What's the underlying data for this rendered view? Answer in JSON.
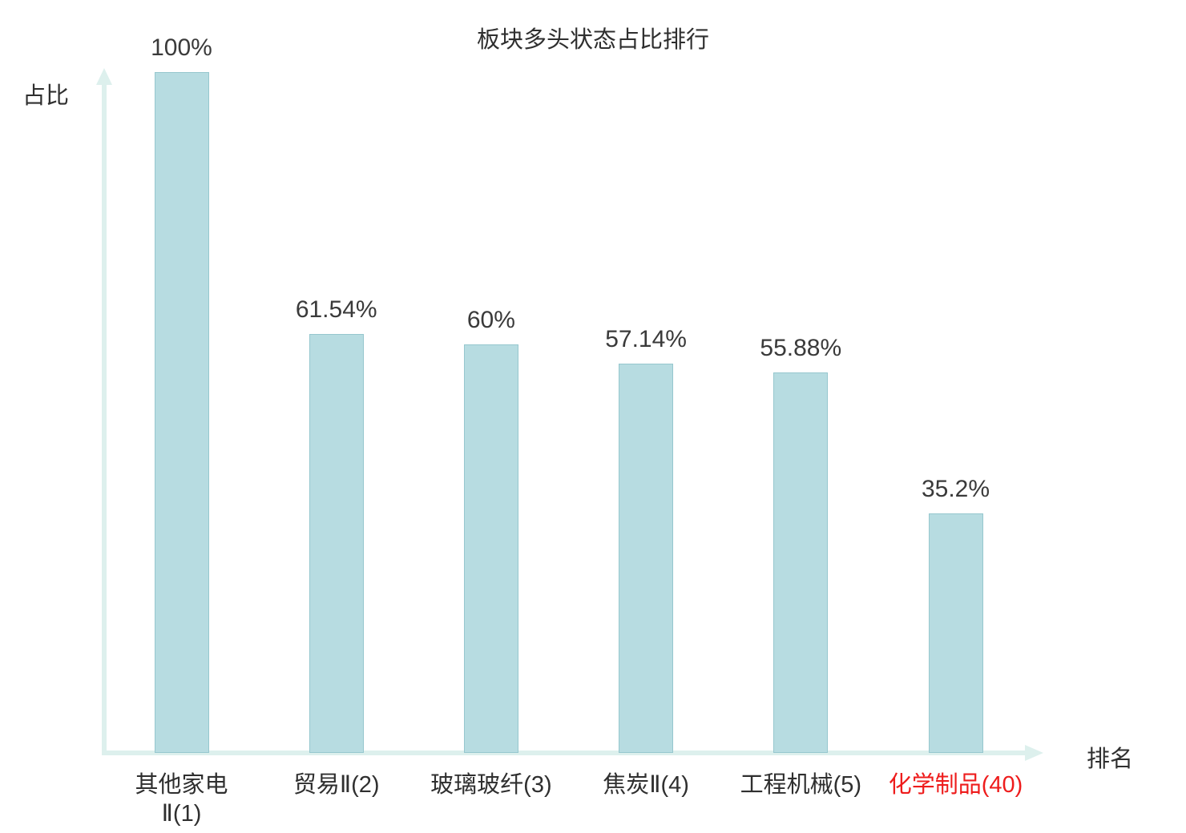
{
  "chart_data": {
    "type": "bar",
    "title": "板块多头状态占比排行",
    "ylabel": "占比",
    "xlabel": "排名",
    "categories": [
      "其他家电\nⅡ(1)",
      "贸易Ⅱ(2)",
      "玻璃玻纤(3)",
      "焦炭Ⅱ(4)",
      "工程机械(5)",
      "化学制品(40)"
    ],
    "values": [
      100,
      61.54,
      60,
      57.14,
      55.88,
      35.2
    ],
    "value_labels": [
      "100%",
      "61.54%",
      "60%",
      "57.14%",
      "55.88%",
      "35.2%"
    ],
    "highlight_index": 5,
    "ylim": [
      0,
      100
    ],
    "grid": false,
    "legend_position": "none",
    "colors": {
      "bar": "#b7dce1",
      "bar_border": "#96c7ce",
      "axis": "#ddf0ed",
      "text": "#2f2f2f",
      "value_text": "#3a3a3a",
      "highlight": "#ee1c1c"
    }
  }
}
